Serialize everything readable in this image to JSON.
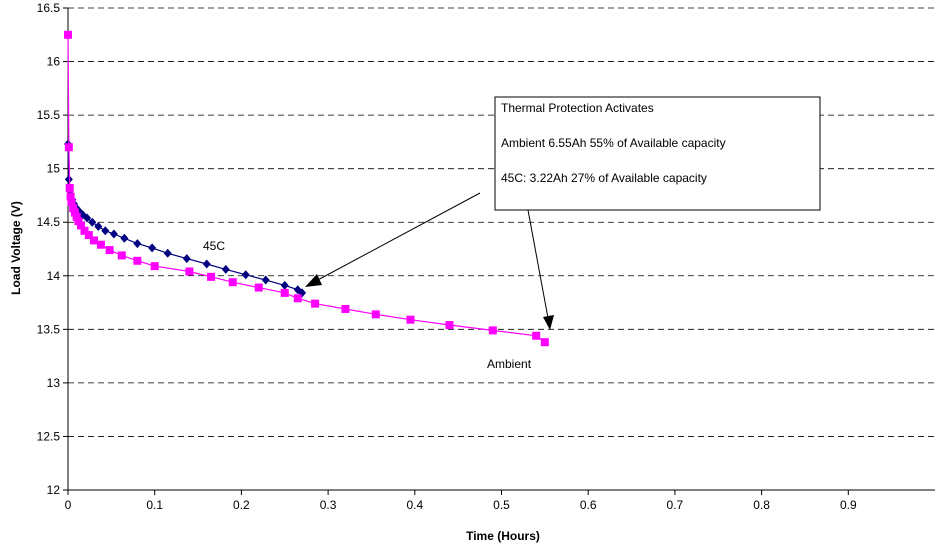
{
  "chart_data": {
    "type": "line",
    "title": "",
    "xlabel": "Time (Hours)",
    "ylabel": "Load Voltage (V)",
    "xlim": [
      0,
      1
    ],
    "ylim": [
      12,
      16.5
    ],
    "x_ticks": [
      "0",
      "0.1",
      "0.2",
      "0.3",
      "0.4",
      "0.5",
      "0.6",
      "0.7",
      "0.8",
      "0.9"
    ],
    "y_ticks": [
      "12",
      "12.5",
      "13",
      "13.5",
      "14",
      "14.5",
      "15",
      "15.5",
      "16",
      "16.5"
    ],
    "grid": "horizontal dashed",
    "series": [
      {
        "name": "45C",
        "color": "#000080",
        "marker": "diamond",
        "x": [
          0,
          0.001,
          0.002,
          0.003,
          0.005,
          0.007,
          0.01,
          0.013,
          0.017,
          0.022,
          0.028,
          0.035,
          0.043,
          0.053,
          0.065,
          0.08,
          0.097,
          0.115,
          0.137,
          0.16,
          0.182,
          0.205,
          0.228,
          0.25,
          0.265,
          0.27
        ],
        "y": [
          15.23,
          14.9,
          14.82,
          14.76,
          14.71,
          14.67,
          14.63,
          14.6,
          14.57,
          14.54,
          14.5,
          14.46,
          14.42,
          14.39,
          14.35,
          14.3,
          14.26,
          14.21,
          14.16,
          14.11,
          14.06,
          14.01,
          13.96,
          13.91,
          13.87,
          13.84
        ]
      },
      {
        "name": "Ambient",
        "color": "#ff00ff",
        "marker": "square",
        "x": [
          0,
          0.001,
          0.002,
          0.003,
          0.004,
          0.006,
          0.008,
          0.01,
          0.012,
          0.015,
          0.019,
          0.024,
          0.03,
          0.038,
          0.048,
          0.062,
          0.08,
          0.1,
          0.14,
          0.165,
          0.19,
          0.22,
          0.25,
          0.265,
          0.285,
          0.32,
          0.355,
          0.395,
          0.44,
          0.49,
          0.54,
          0.55
        ],
        "y": [
          16.25,
          15.2,
          14.82,
          14.74,
          14.69,
          14.63,
          14.59,
          14.55,
          14.51,
          14.47,
          14.42,
          14.38,
          14.33,
          14.29,
          14.24,
          14.19,
          14.14,
          14.09,
          14.04,
          13.99,
          13.94,
          13.89,
          13.84,
          13.79,
          13.74,
          13.69,
          13.64,
          13.59,
          13.54,
          13.49,
          13.44,
          13.38
        ]
      }
    ],
    "annotations": {
      "box_lines": [
        "Thermal Protection Activates",
        "Ambient 6.55Ah  55% of Available capacity",
        "45C: 3.22Ah 27% of Available capacity"
      ],
      "label_45c": "45C",
      "label_ambient": "Ambient"
    }
  }
}
